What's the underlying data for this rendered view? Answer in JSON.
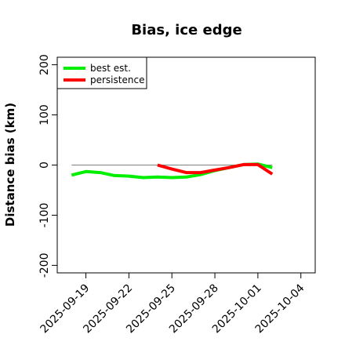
{
  "chart_data": {
    "type": "line",
    "title": "Bias, ice edge",
    "xlabel": "",
    "ylabel": "Distance bias (km)",
    "xlim": [
      "2025-09-17",
      "2025-10-05"
    ],
    "ylim": [
      -215,
      215
    ],
    "y_ticks": [
      200,
      100,
      0,
      -100,
      -200
    ],
    "x_ticks": [
      "2025-09-19",
      "2025-09-22",
      "2025-09-25",
      "2025-09-28",
      "2025-10-01",
      "2025-10-04"
    ],
    "legend_position": "top-left",
    "reference_line": {
      "y": 0,
      "x_start": "2025-09-18",
      "x_end": "2025-10-02",
      "color": "#808080"
    },
    "series": [
      {
        "name": "best est.",
        "color": "#00ee00",
        "x": [
          "2025-09-18",
          "2025-09-19",
          "2025-09-20",
          "2025-09-21",
          "2025-09-22",
          "2025-09-23",
          "2025-09-24",
          "2025-09-25",
          "2025-09-26",
          "2025-09-27",
          "2025-09-28",
          "2025-09-29",
          "2025-09-30",
          "2025-10-01",
          "2025-10-02"
        ],
        "values": [
          -20,
          -13,
          -15,
          -21,
          -22,
          -25,
          -24,
          -25,
          -24,
          -19,
          -11,
          -5,
          1,
          2,
          -5
        ]
      },
      {
        "name": "persistence",
        "color": "#ff0000",
        "x": [
          "2025-09-24",
          "2025-09-25",
          "2025-09-26",
          "2025-09-27",
          "2025-09-28",
          "2025-09-29",
          "2025-09-30",
          "2025-10-01",
          "2025-10-02"
        ],
        "values": [
          0,
          -8,
          -15,
          -15,
          -10,
          -5,
          1,
          1,
          -18
        ]
      }
    ]
  }
}
